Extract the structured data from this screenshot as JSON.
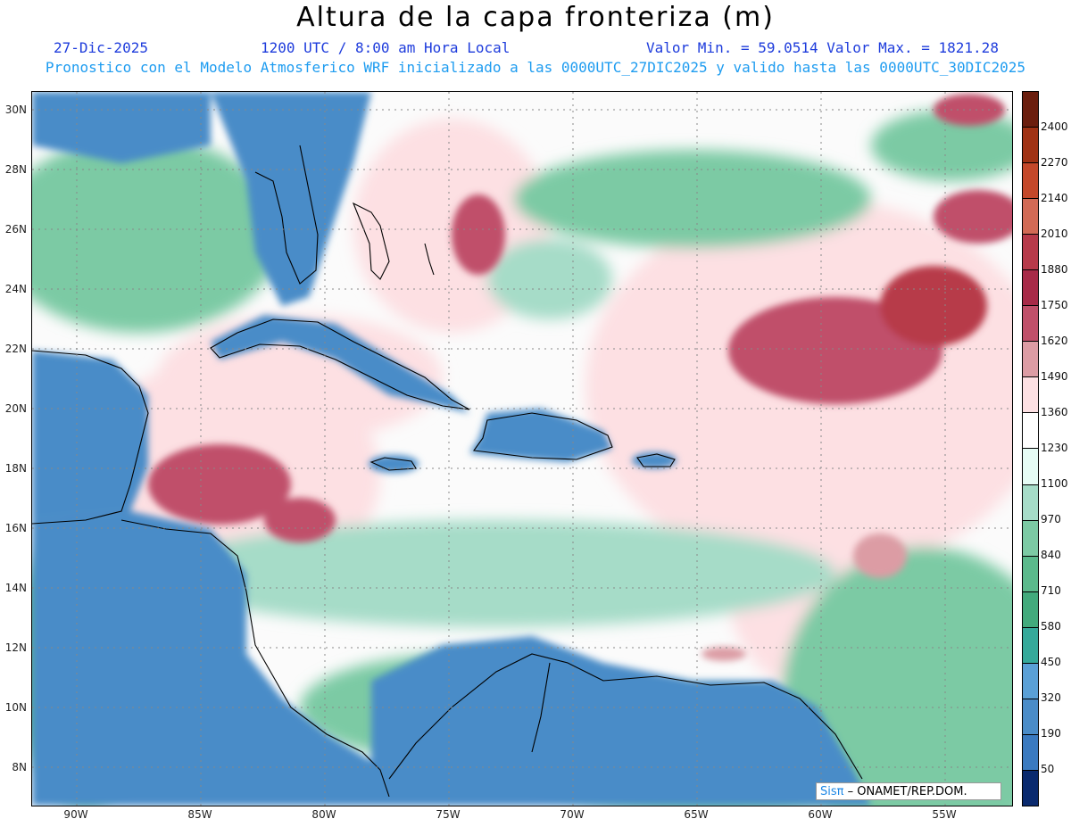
{
  "header": {
    "title": "Altura de la capa fronteriza (m)",
    "date": "27-Dic-2025",
    "time": "1200 UTC / 8:00 am Hora Local",
    "minmax": "Valor Min. = 59.0514  Valor Max. = 1821.28",
    "subtitle": "Pronostico con el Modelo Atmosferico WRF inicializado a las 0000UTC_27DIC2025 y valido hasta las  0000UTC_30DIC2025"
  },
  "axes": {
    "latitudes": [
      "30N",
      "28N",
      "26N",
      "24N",
      "22N",
      "20N",
      "18N",
      "16N",
      "14N",
      "12N",
      "10N",
      "8N"
    ],
    "longitudes": [
      "90W",
      "85W",
      "80W",
      "75W",
      "70W",
      "65W",
      "60W",
      "55W"
    ]
  },
  "colorbar": {
    "levels": [
      "2400",
      "2270",
      "2140",
      "2010",
      "1880",
      "1750",
      "1620",
      "1490",
      "1360",
      "1230",
      "1100",
      "970",
      "840",
      "710",
      "580",
      "450",
      "320",
      "190",
      "50"
    ],
    "colors": [
      "#6b1e0e",
      "#a03214",
      "#c4482a",
      "#d26a55",
      "#b73a4a",
      "#a82a48",
      "#c0506a",
      "#dc9ca4",
      "#fde0e3",
      "#ffffff",
      "#e6fcf5",
      "#a6dcc8",
      "#7ccaa4",
      "#5bba8c",
      "#42aa7c",
      "#35a99a",
      "#5aa0d6",
      "#4a8cc8",
      "#3a7ac0",
      "#0a2a6e"
    ]
  },
  "credit": {
    "brand": "Sisπ",
    "org": "– ONAMET/REP.DOM."
  }
}
